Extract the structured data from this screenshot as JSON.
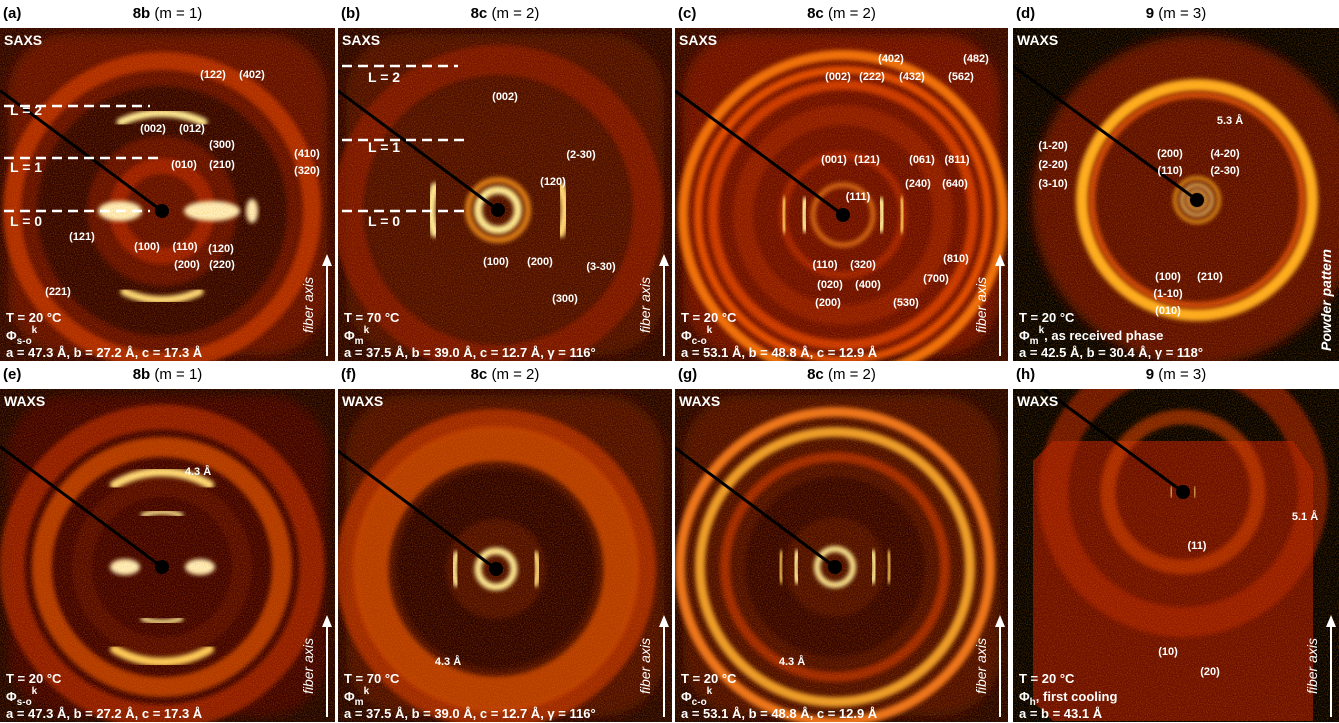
{
  "panels": [
    {
      "label": "(a)",
      "compound": "8b",
      "condition": "(m = 1)",
      "technique": "SAXS",
      "layer_labels": [
        "L = 2",
        "L = 1",
        "L = 0"
      ],
      "reflections": [
        "(122)",
        "(402)",
        "(002)",
        "(012)",
        "(300)",
        "(010)",
        "(210)",
        "(410)",
        "(320)",
        "(121)",
        "(100)",
        "(110)",
        "(120)",
        "(200)",
        "(220)",
        "(221)"
      ],
      "temperature": "T = 20 °C",
      "phase": {
        "symbol": "Φ",
        "sub": "s-o",
        "sup": "k"
      },
      "lattice": "a = 47.3 Å, b = 27.2 Å, c = 17.3 Å",
      "axis_label": "fiber axis"
    },
    {
      "label": "(b)",
      "compound": "8c",
      "condition": "(m = 2)",
      "technique": "SAXS",
      "layer_labels": [
        "L = 2",
        "L = 1",
        "L = 0"
      ],
      "reflections": [
        "(002)",
        "(2-30)",
        "(120)",
        "(100)",
        "(200)",
        "(3-30)",
        "(300)"
      ],
      "temperature": "T = 70 °C",
      "phase": {
        "symbol": "Φ",
        "sub": "m",
        "sup": "k"
      },
      "lattice": "a = 37.5 Å, b = 39.0 Å, c = 12.7 Å, γ = 116°",
      "axis_label": "fiber axis"
    },
    {
      "label": "(c)",
      "compound": "8c",
      "condition": "(m = 2)",
      "technique": "SAXS",
      "reflections": [
        "(402)",
        "(482)",
        "(002)",
        "(222)",
        "(432)",
        "(562)",
        "(001)",
        "(121)",
        "(061)",
        "(811)",
        "(111)",
        "(240)",
        "(640)",
        "(810)",
        "(320)",
        "(700)",
        "(110)",
        "(020)",
        "(400)",
        "(530)",
        "(200)"
      ],
      "temperature": "T = 20 °C",
      "phase": {
        "symbol": "Φ",
        "sub": "c-o",
        "sup": "k"
      },
      "lattice": "a = 53.1 Å, b = 48.8 Å, c = 12.9 Å",
      "axis_label": "fiber axis"
    },
    {
      "label": "(d)",
      "compound": "9",
      "condition": "(m = 3)",
      "technique": "WAXS",
      "reflections": [
        "5.3 Å",
        "(1-20)",
        "(2-20)",
        "(3-10)",
        "(200)",
        "(110)",
        "(4-20)",
        "(2-30)",
        "(100)",
        "(210)",
        "(1-10)",
        "(010)"
      ],
      "temperature": "T = 20 °C",
      "phase": {
        "symbol": "Φ",
        "sub": "m",
        "sup": "k",
        "note": ", as received phase"
      },
      "lattice": "a = 42.5 Å, b = 30.4 Å, γ = 118°",
      "side_label": "Powder pattern"
    },
    {
      "label": "(e)",
      "compound": "8b",
      "condition": "(m = 1)",
      "technique": "WAXS",
      "reflections": [
        "4.3 Å"
      ],
      "temperature": "T = 20 °C",
      "phase": {
        "symbol": "Φ",
        "sub": "s-o",
        "sup": "k"
      },
      "lattice": "a = 47.3 Å, b = 27.2 Å, c = 17.3 Å",
      "axis_label": "fiber axis"
    },
    {
      "label": "(f)",
      "compound": "8c",
      "condition": "(m = 2)",
      "technique": "WAXS",
      "reflections": [
        "4.3 Å"
      ],
      "temperature": "T = 70 °C",
      "phase": {
        "symbol": "Φ",
        "sub": "m",
        "sup": "k"
      },
      "lattice": "a = 37.5 Å, b = 39.0 Å, c = 12.7 Å, γ = 116°",
      "axis_label": "fiber axis"
    },
    {
      "label": "(g)",
      "compound": "8c",
      "condition": "(m = 2)",
      "technique": "WAXS",
      "reflections": [
        "4.3 Å"
      ],
      "temperature": "T = 20 °C",
      "phase": {
        "symbol": "Φ",
        "sub": "c-o",
        "sup": "k"
      },
      "lattice": "a = 53.1 Å, b = 48.8 Å, c = 12.9 Å",
      "axis_label": "fiber axis"
    },
    {
      "label": "(h)",
      "compound": "9",
      "condition": "(m = 3)",
      "technique": "WAXS",
      "reflections": [
        "5.1 Å",
        "(11)",
        "(10)",
        "(20)"
      ],
      "temperature": "T = 20 °C",
      "phase": {
        "symbol": "Φ",
        "sub": "h",
        "note": ", first cooling"
      },
      "lattice": "a = b = 43.1 Å",
      "axis_label": "fiber axis"
    }
  ]
}
